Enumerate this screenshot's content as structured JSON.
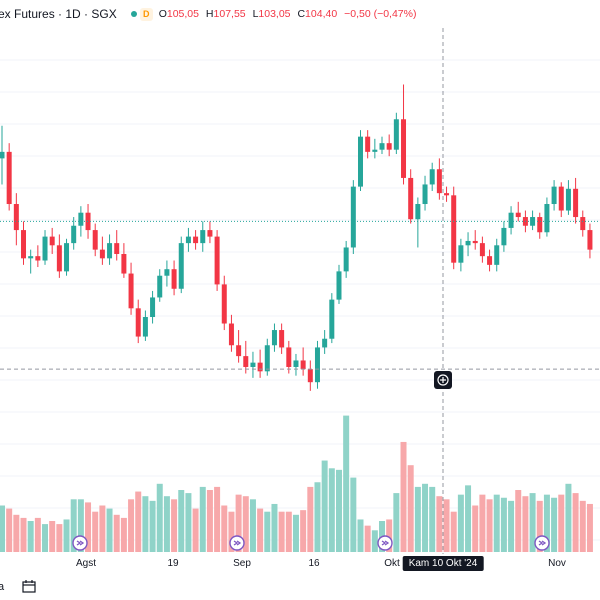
{
  "header": {
    "symbol_text": "ex Futures · 1D · SGX",
    "badge": "D",
    "open_label": "O",
    "open_value": "105,05",
    "high_label": "H",
    "high_value": "107,55",
    "low_label": "L",
    "low_value": "103,05",
    "close_label": "C",
    "close_value": "104,40",
    "change_value": "−0,50 (−0,47%)",
    "colors": {
      "up": "#26a69a",
      "down": "#f23645",
      "up_volume": "#8fd3c8",
      "down_volume": "#f7a8aa"
    }
  },
  "x_axis": {
    "ticks": [
      "Agst",
      "19",
      "Sep",
      "16",
      "Okt",
      "Nov"
    ],
    "crosshair_label": "Kam 10 Okt '24"
  },
  "footer": {
    "left_text": "a",
    "calendar_icon": "calendar-icon"
  },
  "chart_data": {
    "type": "candlestick",
    "series": [
      {
        "name": "candles",
        "values": [
          [
            108.5,
            110.0,
            107.3,
            108.8
          ],
          [
            108.8,
            109.2,
            106.1,
            106.4
          ],
          [
            106.4,
            106.9,
            104.5,
            105.2
          ],
          [
            105.2,
            105.6,
            103.6,
            103.9
          ],
          [
            103.9,
            104.3,
            103.2,
            104.0
          ],
          [
            104.0,
            104.5,
            103.5,
            103.8
          ],
          [
            103.8,
            105.2,
            103.6,
            104.9
          ],
          [
            104.9,
            105.3,
            104.1,
            104.5
          ],
          [
            104.5,
            105.0,
            103.0,
            103.3
          ],
          [
            103.3,
            104.8,
            103.1,
            104.6
          ],
          [
            104.6,
            105.8,
            104.3,
            105.4
          ],
          [
            105.4,
            106.3,
            104.9,
            106.0
          ],
          [
            106.0,
            106.4,
            104.8,
            105.2
          ],
          [
            105.2,
            105.5,
            104.0,
            104.3
          ],
          [
            104.3,
            104.9,
            103.6,
            103.9
          ],
          [
            103.9,
            105.0,
            103.6,
            104.6
          ],
          [
            104.6,
            105.2,
            103.8,
            104.1
          ],
          [
            104.1,
            104.6,
            103.0,
            103.2
          ],
          [
            103.2,
            103.7,
            101.3,
            101.6
          ],
          [
            101.6,
            102.0,
            100.0,
            100.3
          ],
          [
            100.3,
            101.5,
            100.1,
            101.2
          ],
          [
            101.2,
            102.4,
            100.9,
            102.1
          ],
          [
            102.1,
            103.4,
            101.9,
            103.1
          ],
          [
            103.1,
            103.8,
            102.6,
            103.4
          ],
          [
            103.4,
            103.8,
            102.2,
            102.5
          ],
          [
            102.5,
            104.9,
            102.3,
            104.6
          ],
          [
            104.6,
            105.3,
            104.2,
            104.9
          ],
          [
            104.9,
            105.2,
            104.3,
            104.6
          ],
          [
            104.6,
            105.6,
            104.2,
            105.2
          ],
          [
            105.2,
            105.6,
            104.6,
            104.9
          ],
          [
            104.9,
            105.2,
            102.4,
            102.7
          ],
          [
            102.7,
            103.1,
            100.6,
            100.9
          ],
          [
            100.9,
            101.3,
            99.6,
            99.9
          ],
          [
            99.9,
            100.6,
            99.1,
            99.4
          ],
          [
            99.4,
            100.1,
            98.6,
            98.9
          ],
          [
            98.9,
            99.6,
            98.4,
            99.1
          ],
          [
            99.1,
            99.7,
            98.4,
            98.7
          ],
          [
            98.7,
            100.2,
            98.5,
            99.9
          ],
          [
            99.9,
            100.9,
            99.6,
            100.6
          ],
          [
            100.6,
            100.9,
            99.5,
            99.8
          ],
          [
            99.8,
            100.1,
            98.6,
            98.9
          ],
          [
            98.9,
            99.5,
            98.5,
            99.2
          ],
          [
            99.2,
            99.8,
            98.5,
            98.8
          ],
          [
            98.8,
            99.2,
            97.8,
            98.2
          ],
          [
            98.2,
            100.1,
            97.9,
            99.8
          ],
          [
            99.8,
            100.6,
            99.5,
            100.2
          ],
          [
            100.2,
            102.3,
            100.0,
            102.0
          ],
          [
            102.0,
            103.6,
            101.8,
            103.3
          ],
          [
            103.3,
            104.7,
            103.0,
            104.4
          ],
          [
            104.4,
            107.5,
            104.1,
            107.2
          ],
          [
            107.2,
            109.8,
            107.0,
            109.5
          ],
          [
            109.5,
            109.8,
            108.5,
            108.8
          ],
          [
            108.8,
            109.4,
            108.5,
            108.9
          ],
          [
            108.9,
            109.5,
            108.7,
            109.2
          ],
          [
            109.2,
            109.6,
            108.6,
            108.9
          ],
          [
            108.9,
            110.6,
            108.7,
            110.3
          ],
          [
            110.3,
            111.9,
            107.3,
            107.6
          ],
          [
            107.6,
            108.0,
            105.5,
            105.7
          ],
          [
            105.7,
            106.7,
            104.4,
            106.4
          ],
          [
            106.4,
            107.7,
            106.1,
            107.3
          ],
          [
            107.3,
            108.3,
            107.0,
            108.0
          ],
          [
            108.0,
            108.5,
            106.6,
            106.9
          ],
          [
            106.9,
            107.2,
            106.5,
            106.8
          ],
          [
            106.8,
            107.2,
            103.4,
            103.7
          ],
          [
            103.7,
            104.8,
            103.3,
            104.5
          ],
          [
            104.5,
            105.1,
            104.0,
            104.7
          ],
          [
            104.7,
            105.2,
            104.3,
            104.6
          ],
          [
            104.6,
            104.9,
            103.7,
            104.0
          ],
          [
            104.0,
            104.3,
            103.3,
            103.6
          ],
          [
            103.6,
            104.8,
            103.3,
            104.5
          ],
          [
            104.5,
            105.6,
            104.2,
            105.3
          ],
          [
            105.3,
            106.3,
            105.0,
            106.0
          ],
          [
            106.0,
            106.5,
            105.6,
            105.8
          ],
          [
            105.8,
            106.1,
            105.1,
            105.4
          ],
          [
            105.4,
            106.1,
            105.2,
            105.8
          ],
          [
            105.8,
            106.0,
            104.8,
            105.1
          ],
          [
            105.1,
            106.7,
            104.9,
            106.4
          ],
          [
            106.4,
            107.5,
            106.1,
            107.2
          ],
          [
            107.2,
            107.4,
            105.8,
            106.1
          ],
          [
            106.1,
            107.5,
            105.9,
            107.1
          ],
          [
            107.1,
            107.6,
            105.5,
            105.8
          ],
          [
            105.8,
            106.1,
            104.9,
            105.2
          ],
          [
            105.2,
            105.5,
            103.9,
            104.3
          ]
        ]
      },
      {
        "name": "volume",
        "values": [
          30,
          28,
          24,
          22,
          20,
          22,
          18,
          20,
          18,
          21,
          34,
          34,
          32,
          26,
          30,
          28,
          24,
          22,
          34,
          39,
          36,
          33,
          44,
          36,
          34,
          40,
          38,
          28,
          42,
          40,
          42,
          30,
          26,
          37,
          36,
          34,
          28,
          26,
          31,
          26,
          26,
          24,
          27,
          42,
          45,
          59,
          54,
          53,
          88,
          48,
          21,
          17,
          14,
          20,
          21,
          38,
          71,
          56,
          42,
          44,
          42,
          36,
          34,
          26,
          37,
          43,
          30,
          37,
          34,
          37,
          35,
          33,
          40,
          36,
          38,
          33,
          37,
          35,
          37,
          44,
          38,
          33,
          31
        ]
      }
    ],
    "reference_lines": {
      "dotted_green": 105.6,
      "dashed_grey": 98.8
    }
  }
}
